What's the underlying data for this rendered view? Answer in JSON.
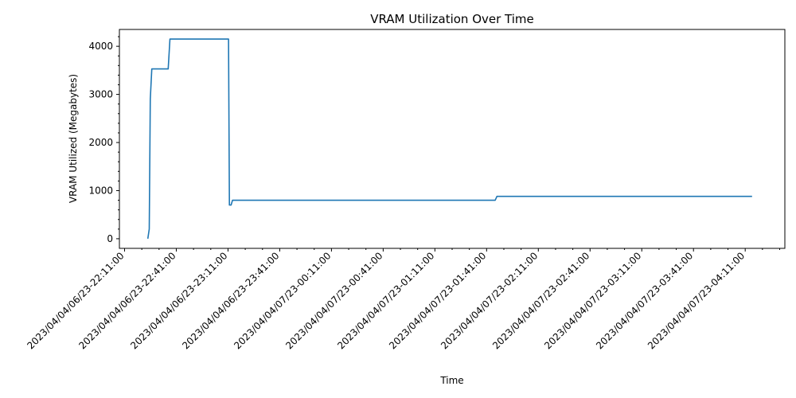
{
  "chart_data": {
    "type": "line",
    "title": "VRAM Utilization Over Time",
    "xlabel": "Time",
    "ylabel": "VRAM Utilized (Megabytes)",
    "x_tick_minutes": [
      0,
      30,
      60,
      90,
      120,
      150,
      180,
      210,
      240,
      270,
      300,
      330,
      360
    ],
    "x_tick_labels": [
      "2023/04/04/06/23-22:11:00",
      "2023/04/04/06/23-22:41:00",
      "2023/04/04/06/23-23:11:00",
      "2023/04/04/06/23-23:41:00",
      "2023/04/04/07/23-00:11:00",
      "2023/04/04/07/23-00:41:00",
      "2023/04/04/07/23-01:11:00",
      "2023/04/04/07/23-01:41:00",
      "2023/04/04/07/23-02:11:00",
      "2023/04/04/07/23-02:41:00",
      "2023/04/04/07/23-03:11:00",
      "2023/04/04/07/23-03:41:00",
      "2023/04/04/07/23-04:11:00"
    ],
    "xlim": [
      -3,
      383
    ],
    "y_ticks": [
      0,
      1000,
      2000,
      3000,
      4000
    ],
    "ylim": [
      -200,
      4350
    ],
    "series": [
      {
        "color": "#1f77b4",
        "points": [
          [
            13.5,
            0
          ],
          [
            14.3,
            200
          ],
          [
            14.9,
            2900
          ],
          [
            15.8,
            3530
          ],
          [
            25.3,
            3530
          ],
          [
            26.3,
            4150
          ],
          [
            60.3,
            4150
          ],
          [
            60.8,
            700
          ],
          [
            61.8,
            700
          ],
          [
            62.6,
            800
          ],
          [
            215,
            800
          ],
          [
            216,
            880
          ],
          [
            364,
            880
          ]
        ]
      }
    ]
  }
}
